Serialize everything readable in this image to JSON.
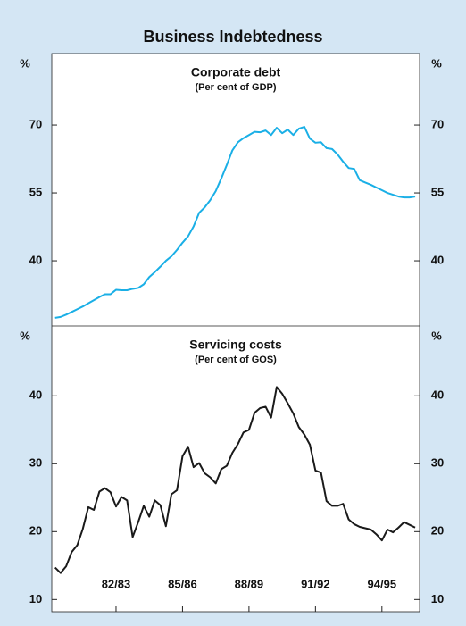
{
  "title": "Business Indebtedness",
  "chart_data": [
    {
      "type": "line",
      "title": "Corporate debt",
      "subtitle": "(Per cent of GDP)",
      "y_label": "%",
      "x": [
        1980.25,
        1980.5,
        1980.75,
        1981,
        1981.25,
        1981.5,
        1981.75,
        1982,
        1982.25,
        1982.5,
        1982.75,
        1983,
        1983.25,
        1983.5,
        1983.75,
        1984,
        1984.25,
        1984.5,
        1984.75,
        1985,
        1985.25,
        1985.5,
        1985.75,
        1986,
        1986.25,
        1986.5,
        1986.75,
        1987,
        1987.25,
        1987.5,
        1987.75,
        1988,
        1988.25,
        1988.5,
        1988.75,
        1989,
        1989.25,
        1989.5,
        1989.75,
        1990,
        1990.25,
        1990.5,
        1990.75,
        1991,
        1991.25,
        1991.5,
        1991.75,
        1992,
        1992.25,
        1992.5,
        1992.75,
        1993,
        1993.25,
        1993.5,
        1993.75,
        1994,
        1994.25,
        1994.5,
        1994.75,
        1995,
        1995.25,
        1995.5,
        1995.75,
        1996,
        1996.25,
        1996.5
      ],
      "xlim": [
        1980.1,
        1996.7
      ],
      "series": [
        {
          "name": "Corporate debt",
          "color": "#1aafe6",
          "values": [
            27.4,
            27.6,
            28.1,
            28.7,
            29.3,
            29.9,
            30.6,
            31.3,
            32.0,
            32.6,
            32.6,
            33.6,
            33.5,
            33.5,
            33.8,
            34.0,
            34.8,
            36.4,
            37.5,
            38.7,
            40.0,
            41.0,
            42.4,
            44.0,
            45.4,
            47.6,
            50.6,
            51.8,
            53.4,
            55.4,
            58.2,
            61.2,
            64.4,
            66.2,
            67.1,
            67.8,
            68.5,
            68.4,
            68.8,
            67.8,
            69.4,
            68.2,
            69.0,
            67.8,
            69.2,
            69.6,
            67.0,
            66.1,
            66.2,
            64.9,
            64.7,
            63.5,
            61.9,
            60.5,
            60.3,
            57.8,
            57.3,
            56.8,
            56.2,
            55.6,
            55.0,
            54.6,
            54.2,
            54.0,
            54.0,
            54.2
          ]
        }
      ],
      "ylim": [
        25.6,
        85.8
      ],
      "yticks": [
        40,
        55,
        70
      ]
    },
    {
      "type": "line",
      "title": "Servicing costs",
      "subtitle": "(Per cent of GOS)",
      "y_label": "%",
      "x": [
        1980.25,
        1980.5,
        1980.75,
        1981,
        1981.25,
        1981.5,
        1981.75,
        1982,
        1982.25,
        1982.5,
        1982.75,
        1983,
        1983.25,
        1983.5,
        1983.75,
        1984,
        1984.25,
        1984.5,
        1984.75,
        1985,
        1985.25,
        1985.5,
        1985.75,
        1986,
        1986.25,
        1986.5,
        1986.75,
        1987,
        1987.25,
        1987.5,
        1987.75,
        1988,
        1988.25,
        1988.5,
        1988.75,
        1989,
        1989.25,
        1989.5,
        1989.75,
        1990,
        1990.25,
        1990.5,
        1990.75,
        1991,
        1991.25,
        1991.5,
        1991.75,
        1992,
        1992.25,
        1992.5,
        1992.75,
        1993,
        1993.25,
        1993.5,
        1993.75,
        1994,
        1994.25,
        1994.5,
        1994.75,
        1995,
        1995.25,
        1995.5,
        1995.75,
        1996,
        1996.25,
        1996.5
      ],
      "xlim": [
        1980.1,
        1996.7
      ],
      "xticks": [
        {
          "value": 1983,
          "label": "82/83"
        },
        {
          "value": 1986,
          "label": "85/86"
        },
        {
          "value": 1989,
          "label": "88/89"
        },
        {
          "value": 1992,
          "label": "91/92"
        },
        {
          "value": 1995,
          "label": "94/95"
        }
      ],
      "series": [
        {
          "name": "Servicing costs",
          "color": "#1a1a1a",
          "values": [
            14.7,
            13.9,
            14.9,
            17.0,
            18.0,
            20.4,
            23.6,
            23.2,
            25.9,
            26.4,
            25.8,
            23.7,
            25.1,
            24.6,
            19.2,
            21.4,
            23.8,
            22.2,
            24.6,
            23.9,
            20.8,
            25.5,
            26.1,
            31.1,
            32.5,
            29.5,
            30.1,
            28.6,
            28.0,
            27.1,
            29.2,
            29.7,
            31.6,
            32.9,
            34.6,
            35.0,
            37.5,
            38.2,
            38.4,
            36.8,
            41.3,
            40.3,
            38.9,
            37.4,
            35.4,
            34.3,
            32.8,
            29.0,
            28.7,
            24.5,
            23.8,
            23.8,
            24.1,
            21.8,
            21.1,
            20.7,
            20.5,
            20.3,
            19.6,
            18.7,
            20.3,
            19.9,
            20.6,
            21.4,
            21.0,
            20.6
          ]
        }
      ],
      "ylim": [
        8.2,
        50.3
      ],
      "yticks": [
        10,
        20,
        30,
        40
      ]
    }
  ]
}
